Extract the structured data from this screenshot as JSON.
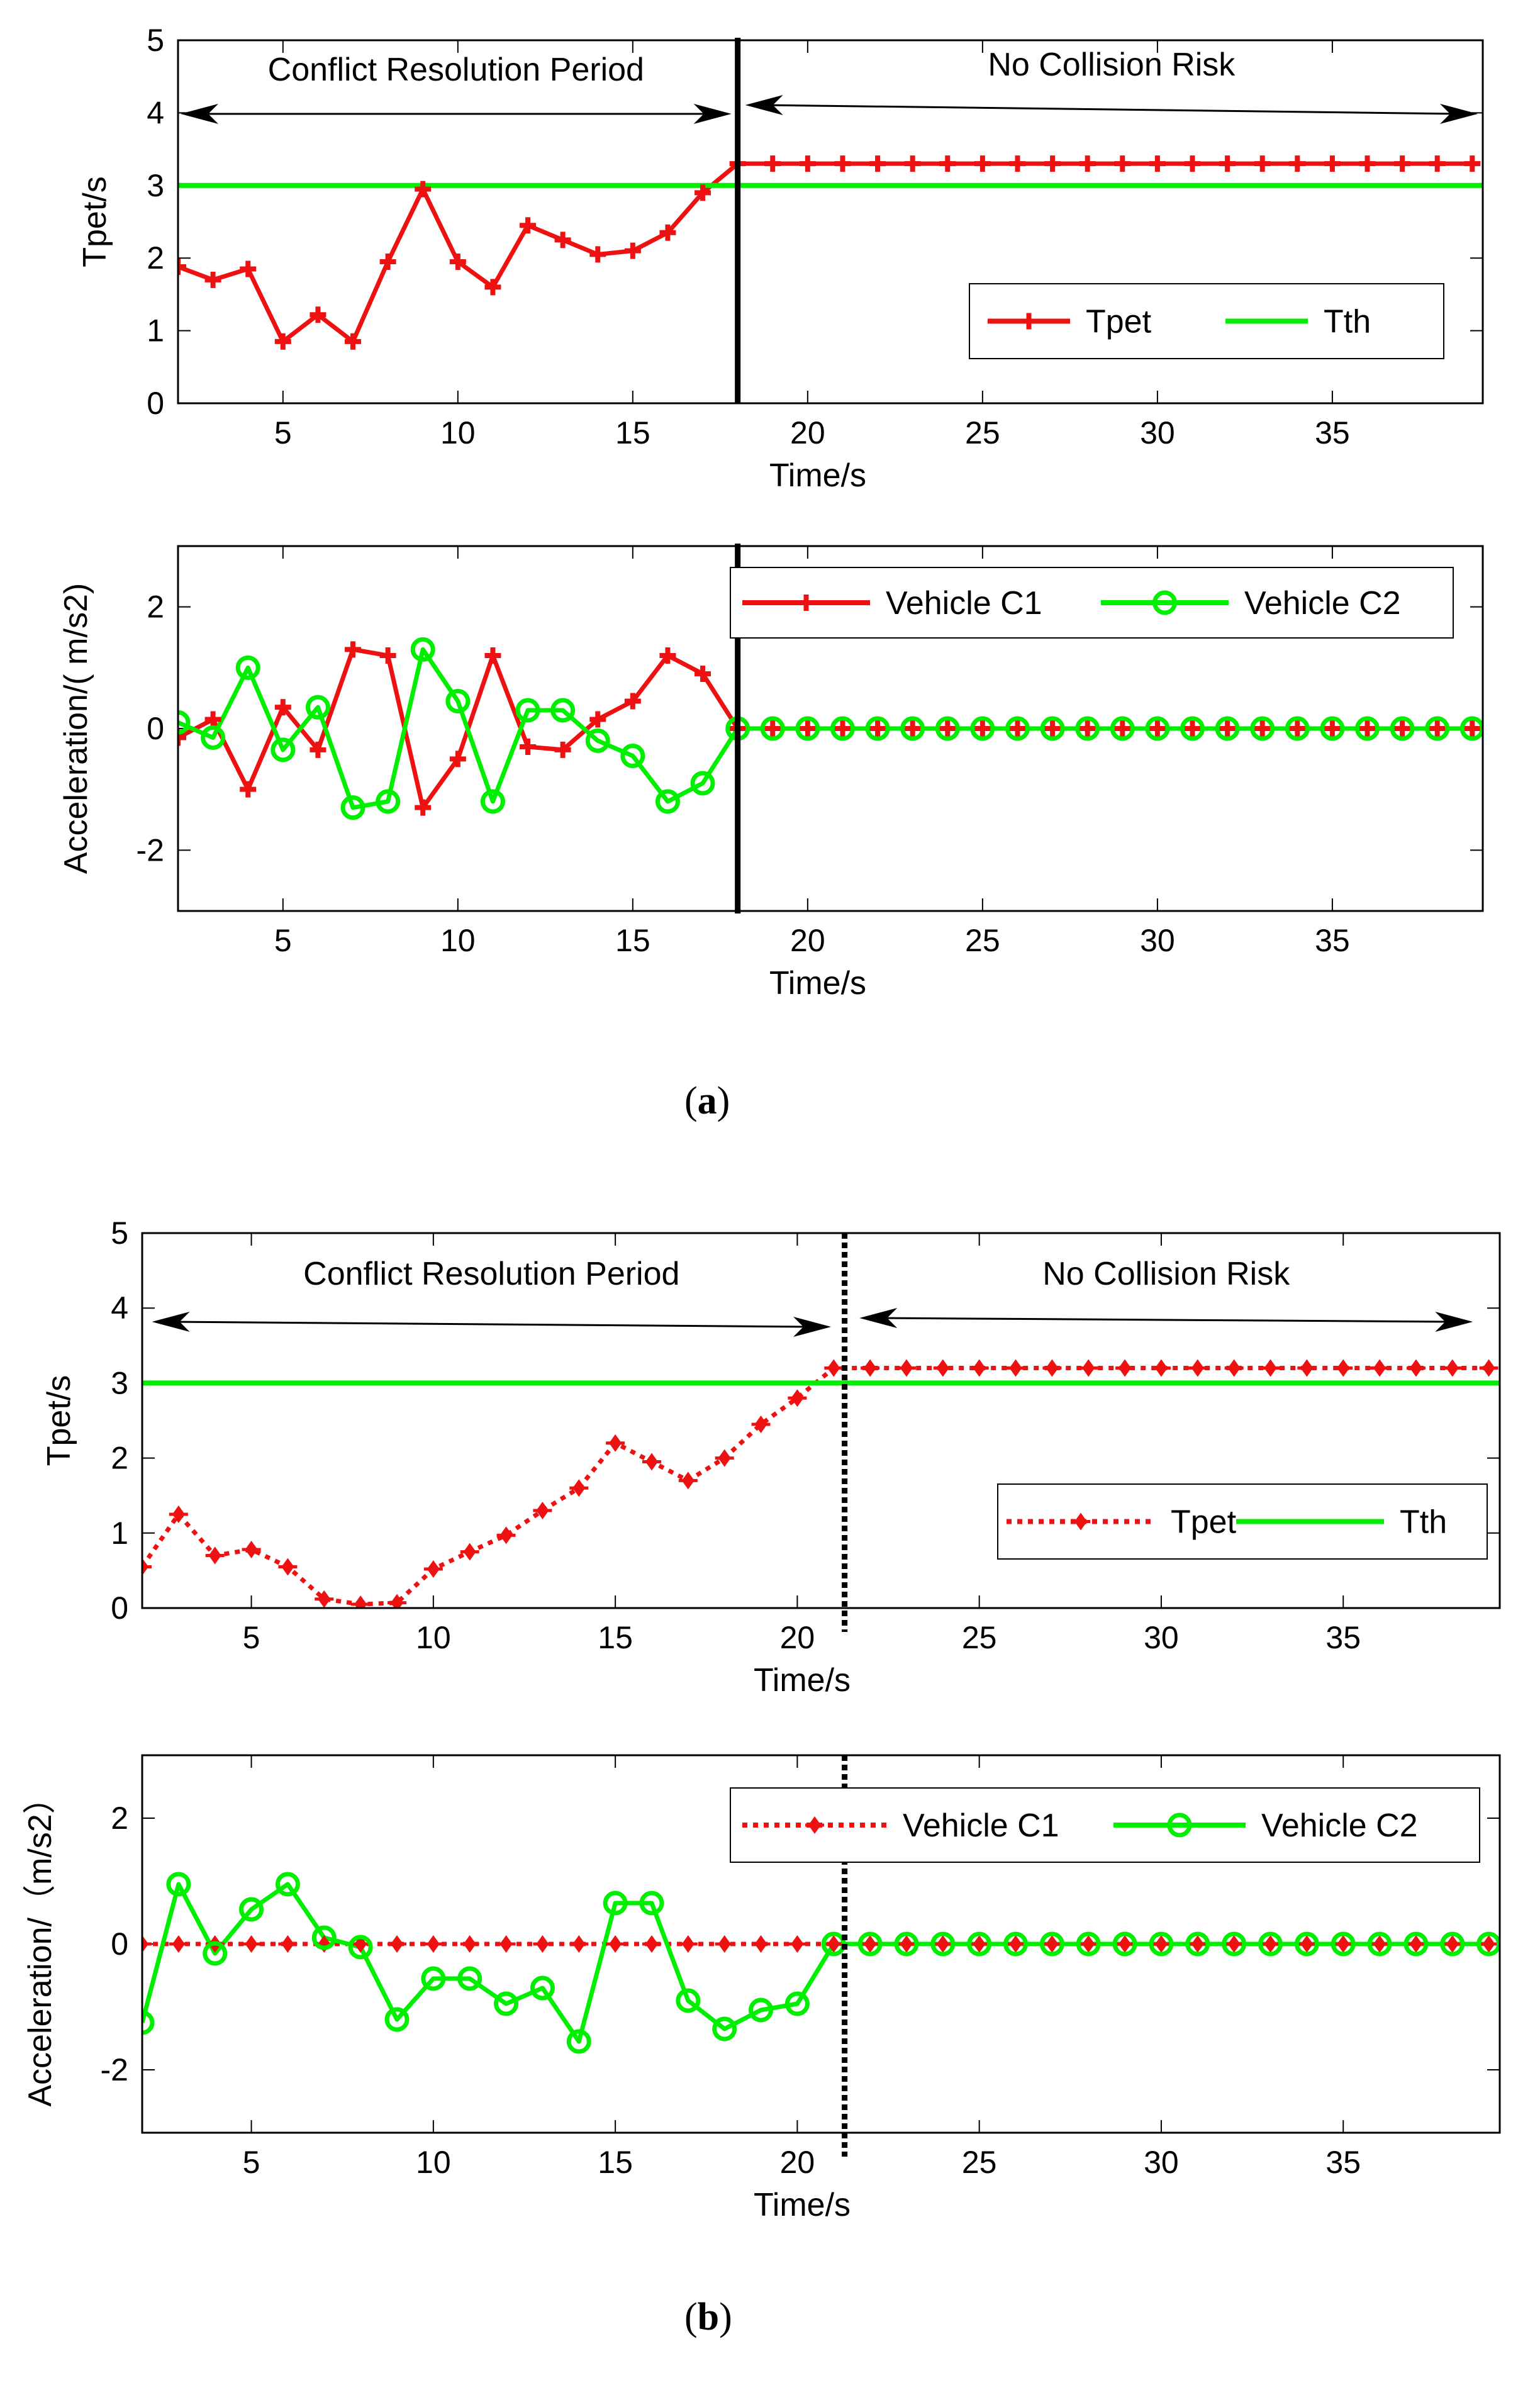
{
  "panel_labels": [
    {
      "open": "(",
      "letter": "a",
      "close": ")"
    },
    {
      "open": "(",
      "letter": "b",
      "close": ")"
    }
  ],
  "colors": {
    "tpet": "#ee1111",
    "tth": "#00ee00",
    "c1": "#ee1111",
    "c2": "#00ee00",
    "axis": "#000000"
  },
  "chart_data": [
    {
      "id": "a-top",
      "type": "line",
      "panel": "a",
      "xlabel": "Time/s",
      "ylabel": "Tpet/s",
      "xlim": [
        2,
        39.3
      ],
      "ylim": [
        0,
        5
      ],
      "xticks": [
        5,
        10,
        15,
        20,
        25,
        30,
        35
      ],
      "yticks": [
        0,
        1,
        2,
        3,
        4,
        5
      ],
      "vline": {
        "x": 18,
        "style": "solid"
      },
      "annotations": [
        {
          "text": "Conflict Resolution Period",
          "arrow_from": 2,
          "arrow_to": 18
        },
        {
          "text": "No Collision Risk",
          "arrow_from": 18,
          "arrow_to": 39.3
        }
      ],
      "legend": {
        "position": "right",
        "entries": [
          "Tpet",
          "Tth"
        ]
      },
      "series": [
        {
          "name": "Tpet",
          "color": "#ee1111",
          "marker": "plus",
          "dash": false,
          "x": [
            2,
            3,
            4,
            5,
            6,
            7,
            8,
            9,
            10,
            11,
            12,
            13,
            14,
            15,
            16,
            17,
            18,
            19,
            20,
            21,
            22,
            23,
            24,
            25,
            26,
            27,
            28,
            29,
            30,
            31,
            32,
            33,
            34,
            35,
            36,
            37,
            38,
            39
          ],
          "y": [
            1.88,
            1.7,
            1.85,
            0.85,
            1.22,
            0.85,
            1.95,
            2.95,
            1.95,
            1.6,
            2.45,
            2.25,
            2.05,
            2.1,
            2.35,
            2.9,
            3.3,
            3.3,
            3.3,
            3.3,
            3.3,
            3.3,
            3.3,
            3.3,
            3.3,
            3.3,
            3.3,
            3.3,
            3.3,
            3.3,
            3.3,
            3.3,
            3.3,
            3.3,
            3.3,
            3.3,
            3.3,
            3.3
          ]
        },
        {
          "name": "Tth",
          "color": "#00ee00",
          "marker": "none",
          "dash": false,
          "x": [
            2,
            39.3
          ],
          "y": [
            3,
            3
          ]
        }
      ]
    },
    {
      "id": "a-bottom",
      "type": "line",
      "panel": "a",
      "xlabel": "Time/s",
      "ylabel": "Acceleration/( m/s2)",
      "xlim": [
        2,
        39.3
      ],
      "ylim": [
        -3,
        3
      ],
      "xticks": [
        5,
        10,
        15,
        20,
        25,
        30,
        35
      ],
      "yticks": [
        -2,
        0,
        2
      ],
      "vline": {
        "x": 18,
        "style": "solid"
      },
      "annotations": [],
      "legend": {
        "position": "top-right",
        "entries": [
          "Vehicle C1",
          "Vehicle C2"
        ]
      },
      "series": [
        {
          "name": "Vehicle C1",
          "color": "#ee1111",
          "marker": "plus",
          "dash": false,
          "x": [
            2,
            3,
            4,
            5,
            6,
            7,
            8,
            9,
            10,
            11,
            12,
            13,
            14,
            15,
            16,
            17,
            18,
            19,
            20,
            21,
            22,
            23,
            24,
            25,
            26,
            27,
            28,
            29,
            30,
            31,
            32,
            33,
            34,
            35,
            36,
            37,
            38,
            39
          ],
          "y": [
            -0.15,
            0.15,
            -1.0,
            0.35,
            -0.35,
            1.3,
            1.2,
            -1.3,
            -0.5,
            1.2,
            -0.3,
            -0.35,
            0.15,
            0.45,
            1.2,
            0.9,
            0,
            0,
            0,
            0,
            0,
            0,
            0,
            0,
            0,
            0,
            0,
            0,
            0,
            0,
            0,
            0,
            0,
            0,
            0,
            0,
            0,
            0
          ]
        },
        {
          "name": "Vehicle C2",
          "color": "#00ee00",
          "marker": "circle",
          "dash": false,
          "x": [
            2,
            3,
            4,
            5,
            6,
            7,
            8,
            9,
            10,
            11,
            12,
            13,
            14,
            15,
            16,
            17,
            18,
            19,
            20,
            21,
            22,
            23,
            24,
            25,
            26,
            27,
            28,
            29,
            30,
            31,
            32,
            33,
            34,
            35,
            36,
            37,
            38,
            39
          ],
          "y": [
            0.1,
            -0.15,
            1.0,
            -0.35,
            0.35,
            -1.3,
            -1.2,
            1.3,
            0.45,
            -1.2,
            0.3,
            0.3,
            -0.2,
            -0.45,
            -1.2,
            -0.9,
            0,
            0,
            0,
            0,
            0,
            0,
            0,
            0,
            0,
            0,
            0,
            0,
            0,
            0,
            0,
            0,
            0,
            0,
            0,
            0,
            0,
            0
          ]
        }
      ]
    },
    {
      "id": "b-top",
      "type": "line",
      "panel": "b",
      "xlabel": "Time/s",
      "ylabel": "Tpet/s",
      "xlim": [
        2,
        39.3
      ],
      "ylim": [
        0,
        5
      ],
      "xticks": [
        5,
        10,
        15,
        20,
        25,
        30,
        35
      ],
      "yticks": [
        0,
        1,
        2,
        3,
        4,
        5
      ],
      "vline": {
        "x": 21.3,
        "style": "dotted"
      },
      "annotations": [
        {
          "text": "Conflict Resolution Period",
          "arrow_from": 2.2,
          "arrow_to": 21.1
        },
        {
          "text": "No Collision Risk",
          "arrow_from": 21.5,
          "arrow_to": 38.7
        }
      ],
      "legend": {
        "position": "right",
        "entries": [
          "Tpet",
          "Tth"
        ]
      },
      "series": [
        {
          "name": "Tpet",
          "color": "#ee1111",
          "marker": "diamond",
          "dash": true,
          "x": [
            2,
            3,
            4,
            5,
            6,
            7,
            8,
            9,
            10,
            11,
            12,
            13,
            14,
            15,
            16,
            17,
            18,
            19,
            20,
            21,
            22,
            23,
            24,
            25,
            26,
            27,
            28,
            29,
            30,
            31,
            32,
            33,
            34,
            35,
            36,
            37,
            38,
            39
          ],
          "y": [
            0.55,
            1.25,
            0.7,
            0.78,
            0.55,
            0.12,
            0.05,
            0.07,
            0.52,
            0.75,
            0.97,
            1.3,
            1.6,
            2.2,
            1.95,
            1.7,
            2.0,
            2.45,
            2.8,
            3.2,
            3.2,
            3.2,
            3.2,
            3.2,
            3.2,
            3.2,
            3.2,
            3.2,
            3.2,
            3.2,
            3.2,
            3.2,
            3.2,
            3.2,
            3.2,
            3.2,
            3.2,
            3.2
          ]
        },
        {
          "name": "Tth",
          "color": "#00ee00",
          "marker": "none",
          "dash": false,
          "x": [
            2,
            39.3
          ],
          "y": [
            3,
            3
          ]
        }
      ]
    },
    {
      "id": "b-bottom",
      "type": "line",
      "panel": "b",
      "xlabel": "Time/s",
      "ylabel": "Acceleration/（m/s2）",
      "xlim": [
        2,
        39.3
      ],
      "ylim": [
        -3,
        3
      ],
      "xticks": [
        5,
        10,
        15,
        20,
        25,
        30,
        35
      ],
      "yticks": [
        -2,
        0,
        2
      ],
      "vline": {
        "x": 21.3,
        "style": "dotted"
      },
      "annotations": [],
      "legend": {
        "position": "top-right",
        "entries": [
          "Vehicle C1",
          "Vehicle C2"
        ]
      },
      "series": [
        {
          "name": "Vehicle C1",
          "color": "#ee1111",
          "marker": "diamond",
          "dash": true,
          "x": [
            2,
            3,
            4,
            5,
            6,
            7,
            8,
            9,
            10,
            11,
            12,
            13,
            14,
            15,
            16,
            17,
            18,
            19,
            20,
            21,
            22,
            23,
            24,
            25,
            26,
            27,
            28,
            29,
            30,
            31,
            32,
            33,
            34,
            35,
            36,
            37,
            38,
            39
          ],
          "y": [
            0,
            0,
            0,
            0,
            0,
            0,
            0,
            0,
            0,
            0,
            0,
            0,
            0,
            0,
            0,
            0,
            0,
            0,
            0,
            0,
            0,
            0,
            0,
            0,
            0,
            0,
            0,
            0,
            0,
            0,
            0,
            0,
            0,
            0,
            0,
            0,
            0,
            0
          ]
        },
        {
          "name": "Vehicle C2",
          "color": "#00ee00",
          "marker": "circle",
          "dash": false,
          "x": [
            2,
            3,
            4,
            5,
            6,
            7,
            8,
            9,
            10,
            11,
            12,
            13,
            14,
            15,
            16,
            17,
            18,
            19,
            20,
            21,
            22,
            23,
            24,
            25,
            26,
            27,
            28,
            29,
            30,
            31,
            32,
            33,
            34,
            35,
            36,
            37,
            38,
            39
          ],
          "y": [
            -1.25,
            0.95,
            -0.15,
            0.55,
            0.95,
            0.1,
            -0.05,
            -1.2,
            -0.55,
            -0.55,
            -0.95,
            -0.7,
            -1.55,
            0.65,
            0.65,
            -0.9,
            -1.35,
            -1.05,
            -0.95,
            0,
            0,
            0,
            0,
            0,
            0,
            0,
            0,
            0,
            0,
            0,
            0,
            0,
            0,
            0,
            0,
            0,
            0,
            0
          ]
        }
      ]
    }
  ]
}
